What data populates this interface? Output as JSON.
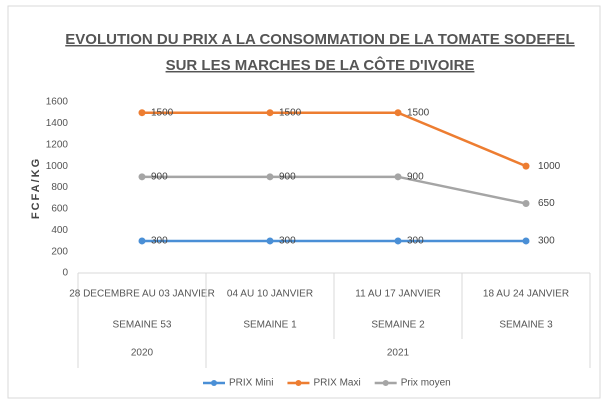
{
  "chart_data": {
    "type": "line",
    "title": [
      "EVOLUTION DU PRIX A LA CONSOMMATION DE LA TOMATE SODEFEL",
      "SUR LES MARCHES DE LA CÔTE D'IVOIRE"
    ],
    "y_label": "FCFA/KG",
    "groups": [
      {
        "name": "2020",
        "categories": [
          "28 DECEMBRE AU 03 JANVIER"
        ],
        "weeks": [
          "SEMAINE 53"
        ]
      },
      {
        "name": "2021",
        "categories": [
          "04 AU 10 JANVIER",
          "11 AU 17 JANVIER",
          "18 AU 24 JANVIER"
        ],
        "weeks": [
          "SEMAINE 1",
          "SEMAINE 2",
          "SEMAINE 3"
        ]
      }
    ],
    "series": [
      {
        "name": "PRIX Mini",
        "color": "#4a8fd6",
        "values": [
          300,
          300,
          300,
          300
        ]
      },
      {
        "name": "PRIX Maxi",
        "color": "#ed7d31",
        "values": [
          1500,
          1500,
          1500,
          1000
        ]
      },
      {
        "name": "Prix moyen",
        "color": "#a5a5a5",
        "values": [
          900,
          900,
          900,
          650
        ]
      }
    ],
    "ylim": [
      0,
      1600
    ],
    "yticks": [
      0,
      200,
      400,
      600,
      800,
      1000,
      1200,
      1400,
      1600
    ],
    "grid": false,
    "legend": "bottom"
  }
}
